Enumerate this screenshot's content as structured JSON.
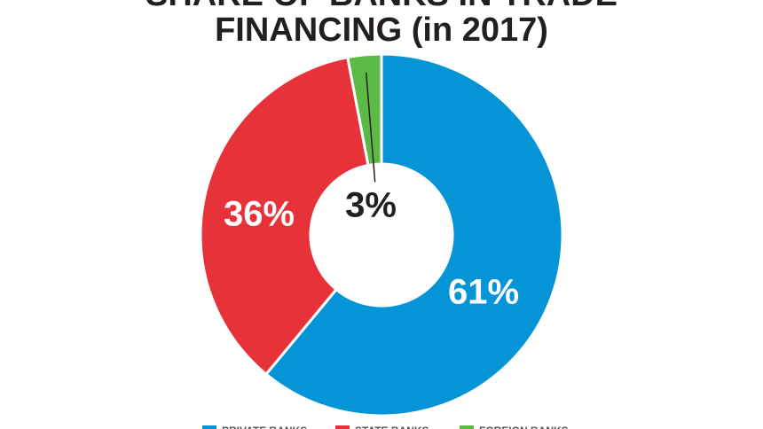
{
  "chart_data": {
    "type": "donut",
    "title": [
      "SHARE OF BANKS IN TRADE",
      "FINANCING (in 2017)"
    ],
    "categories": [
      "PRIVATE BANKS",
      "STATE BANKS",
      "FOREIGN BANKS"
    ],
    "values": [
      61,
      36,
      3
    ],
    "value_labels": [
      "61%",
      "36%",
      "3%"
    ],
    "colors": [
      "#0595d7",
      "#e8323a",
      "#5cb946"
    ]
  }
}
